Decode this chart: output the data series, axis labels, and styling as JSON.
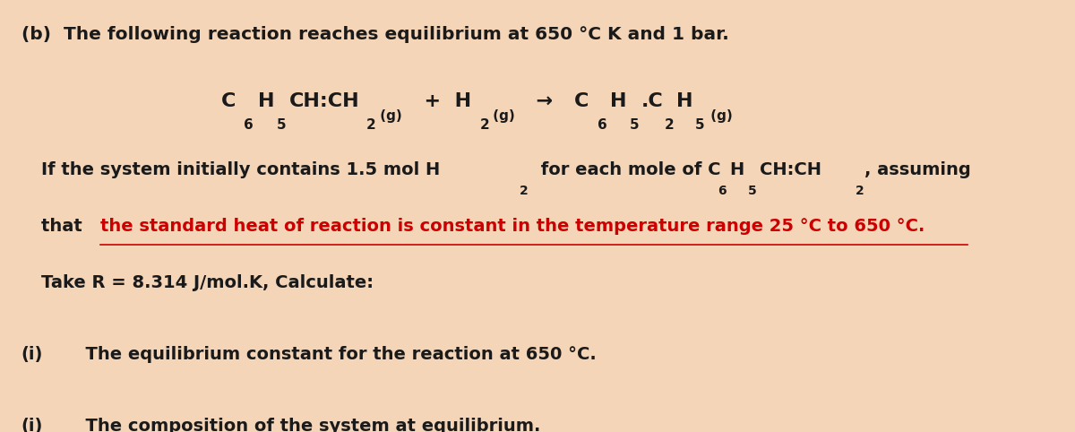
{
  "background_color": "#F5D5B8",
  "text_color": "#1a1a1a",
  "red_color": "#CC0000",
  "fig_width": 12.0,
  "fig_height": 4.82,
  "title_line": "(b)  The following reaction reaches equilibrium at 650 °C K and 1 bar.",
  "para_line2_prefix": "that ",
  "para_line2_red": "the standard heat of reaction is constant in the temperature range 25 °C to 650 °C.",
  "para_line3": "Take R = 8.314 J/mol.K, Calculate:",
  "q1_label": "(i)",
  "q1_text": "  The equilibrium constant for the reaction at 650 °C.",
  "q2_label": "(i)",
  "q2_text": "  The composition of the system at equilibrium."
}
